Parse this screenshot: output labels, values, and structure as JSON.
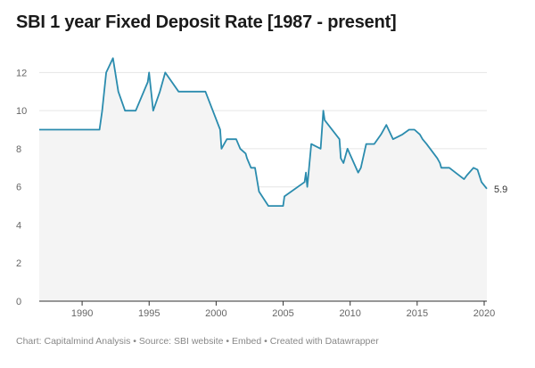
{
  "chart_data": {
    "type": "area",
    "title": "SBI 1 year Fixed Deposit Rate [1987 - present]",
    "xlabel": "",
    "ylabel": "",
    "xlim": [
      1986.8,
      2020.2
    ],
    "ylim": [
      0,
      13
    ],
    "yticks": [
      0,
      2,
      4,
      6,
      8,
      10,
      12
    ],
    "xticks": [
      1990,
      1995,
      2000,
      2005,
      2010,
      2015,
      2020
    ],
    "grid": true,
    "legend": "none",
    "line_color": "#2b8cae",
    "fill_color": "#f4f4f4",
    "end_label": "5.9",
    "x": [
      1986.8,
      1991.3,
      1991.5,
      1991.8,
      1992.3,
      1992.7,
      1993.2,
      1994.0,
      1994.9,
      1995.0,
      1995.3,
      1995.8,
      1996.2,
      1997.2,
      1999.2,
      2000.3,
      2000.4,
      2000.8,
      2001.5,
      2001.8,
      2002.2,
      2002.3,
      2002.6,
      2002.9,
      2003.2,
      2003.9,
      2005.0,
      2005.1,
      2006.6,
      2006.7,
      2006.8,
      2007.1,
      2007.8,
      2008.0,
      2008.1,
      2009.2,
      2009.3,
      2009.5,
      2009.8,
      2010.6,
      2010.8,
      2011.2,
      2011.8,
      2012.3,
      2012.7,
      2013.2,
      2013.9,
      2014.4,
      2014.8,
      2015.2,
      2015.4,
      2015.7,
      2016.5,
      2016.7,
      2016.8,
      2017.4,
      2018.5,
      2018.7,
      2019.2,
      2019.5,
      2019.8,
      2020.2
    ],
    "values": [
      9.0,
      9.0,
      10.0,
      12.0,
      12.75,
      11.0,
      10.0,
      10.0,
      11.5,
      12.0,
      10.0,
      11.0,
      12.0,
      11.0,
      11.0,
      9.0,
      8.0,
      8.5,
      8.5,
      8.0,
      7.75,
      7.5,
      7.0,
      7.0,
      5.75,
      5.0,
      5.0,
      5.5,
      6.25,
      6.75,
      6.0,
      8.25,
      8.0,
      10.0,
      9.5,
      8.5,
      7.5,
      7.25,
      8.0,
      6.75,
      7.0,
      8.25,
      8.25,
      8.75,
      9.25,
      8.5,
      8.75,
      9.0,
      9.0,
      8.75,
      8.5,
      8.25,
      7.5,
      7.25,
      7.0,
      7.0,
      6.4,
      6.6,
      7.0,
      6.9,
      6.25,
      5.9
    ]
  },
  "footer": {
    "text": "Chart: Capitalmind Analysis • Source: SBI website • Embed • Created with Datawrapper"
  }
}
